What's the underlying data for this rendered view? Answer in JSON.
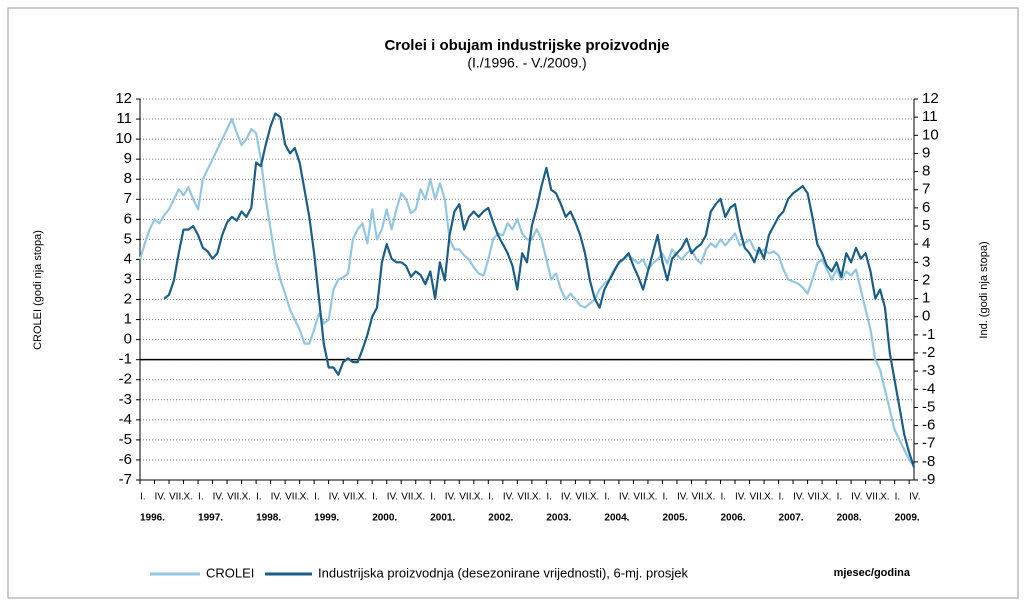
{
  "chart_data": {
    "type": "line",
    "title": "Crolei i obujam industrijske proizvodnje",
    "subtitle": "(I./1996. - V./2009.)",
    "ylabel": "CROLEI (godi nja stopa)",
    "y2label": "Ind. (godi nja stopa)",
    "xlabel": "mjesec/godina",
    "categories": [
      "I.",
      null,
      null,
      "IV.",
      null,
      null,
      "VII.",
      null,
      null,
      "X.",
      null,
      null,
      "I.",
      null,
      null,
      "IV.",
      null,
      null,
      "VII.",
      null,
      null,
      "X.",
      null,
      null,
      "I.",
      null,
      null,
      "IV.",
      null,
      null,
      "VII.",
      null,
      null,
      "X.",
      null,
      null,
      "I.",
      null,
      null,
      "IV.",
      null,
      null,
      "VII.",
      null,
      null,
      "X.",
      null,
      null,
      "I.",
      null,
      null,
      "IV.",
      null,
      null,
      "VII.",
      null,
      null,
      "X.",
      null,
      null,
      "I.",
      null,
      null,
      "IV.",
      null,
      null,
      "VII.",
      null,
      null,
      "X.",
      null,
      null,
      "I.",
      null,
      null,
      "IV.",
      null,
      null,
      "VII.",
      null,
      null,
      "X.",
      null,
      null,
      "I.",
      null,
      null,
      "IV.",
      null,
      null,
      "VII.",
      null,
      null,
      "X.",
      null,
      null,
      "I.",
      null,
      null,
      "IV.",
      null,
      null,
      "VII.",
      null,
      null,
      "X.",
      null,
      null,
      "I.",
      null,
      null,
      "IV.",
      null,
      null,
      "VII.",
      null,
      null,
      "X.",
      null,
      null,
      "I.",
      null,
      null,
      "IV.",
      null,
      null,
      "VII.",
      null,
      null,
      "X.",
      null,
      null,
      "I.",
      null,
      null,
      "IV.",
      null,
      null,
      "VII.",
      null,
      null,
      "X.",
      null,
      null,
      "I.",
      null,
      null,
      "IV.",
      null,
      null,
      "VII.",
      null,
      null,
      "X.",
      null,
      null,
      "I.",
      null,
      null,
      "IV.",
      null
    ],
    "years": [
      "1996.",
      "1997.",
      "1998.",
      "1999.",
      "2000.",
      "2001.",
      "2002.",
      "2003.",
      "2004.",
      "2005.",
      "2006.",
      "2007.",
      "2008.",
      "2009."
    ],
    "series": [
      {
        "name": "CROLEI",
        "color": "#93c6e2",
        "axis": "y",
        "values": [
          4.0,
          4.8,
          5.5,
          6.0,
          5.8,
          6.2,
          6.5,
          7.0,
          7.5,
          7.2,
          7.6,
          7.0,
          6.5,
          8.0,
          8.5,
          9.0,
          9.5,
          10.0,
          10.5,
          11.0,
          10.3,
          9.7,
          10.0,
          10.5,
          10.3,
          9.0,
          7.0,
          5.5,
          4.0,
          3.0,
          2.3,
          1.5,
          1.0,
          0.5,
          -0.2,
          -0.2,
          0.5,
          1.3,
          0.8,
          1.0,
          2.5,
          3.0,
          3.1,
          3.3,
          5.0,
          5.5,
          5.8,
          4.8,
          6.5,
          5.0,
          5.5,
          6.5,
          5.5,
          6.5,
          7.3,
          7.0,
          6.3,
          6.5,
          7.5,
          7.0,
          8.0,
          7.0,
          7.8,
          7.0,
          5.0,
          4.5,
          4.5,
          4.2,
          4.0,
          3.6,
          3.3,
          3.2,
          4.0,
          5.0,
          5.3,
          5.2,
          5.8,
          5.5,
          6.0,
          5.3,
          5.0,
          5.0,
          5.5,
          5.0,
          4.0,
          3.0,
          3.3,
          2.5,
          2.0,
          2.3,
          2.0,
          1.7,
          1.6,
          1.8,
          2.0,
          2.5,
          2.8,
          3.0,
          3.5,
          3.8,
          4.0,
          4.2,
          4.0,
          3.8,
          4.0,
          3.5,
          3.8,
          4.0,
          4.3,
          3.8,
          4.5,
          4.2,
          4.0,
          4.3,
          4.5,
          4.0,
          3.8,
          4.5,
          4.8,
          4.6,
          5.0,
          4.7,
          5.0,
          5.3,
          4.7,
          4.8,
          5.0,
          4.5,
          4.3,
          4.5,
          4.3,
          4.4,
          4.2,
          3.5,
          3.0,
          2.9,
          2.8,
          2.6,
          2.3,
          3.0,
          3.8,
          4.0,
          3.5,
          3.0,
          3.5,
          3.0,
          3.4,
          3.2,
          3.5,
          2.5,
          1.5,
          0.5,
          -1.0,
          -1.5,
          -2.5,
          -3.5,
          -4.5,
          -5.0,
          -5.5,
          -6.0,
          -6.3
        ]
      },
      {
        "name": "Industrijska proizvodnja (desezonirane vrijednosti), 6-mj. prosjek",
        "color": "#1a5e86",
        "axis": "y2",
        "values": [
          null,
          null,
          null,
          null,
          null,
          1.0,
          1.2,
          2.0,
          3.5,
          4.8,
          4.8,
          5.0,
          4.5,
          3.8,
          3.6,
          3.2,
          3.5,
          4.5,
          5.2,
          5.5,
          5.3,
          5.8,
          5.5,
          6.0,
          8.5,
          8.3,
          9.5,
          10.5,
          11.2,
          11.0,
          9.5,
          9.0,
          9.3,
          8.5,
          7.0,
          5.5,
          3.5,
          1.0,
          -1.5,
          -2.8,
          -2.8,
          -3.2,
          -2.5,
          -2.3,
          -2.5,
          -2.5,
          -1.8,
          -1.0,
          0,
          0.5,
          3.0,
          4.0,
          3.2,
          3.0,
          3.0,
          2.8,
          2.2,
          2.5,
          2.3,
          1.8,
          2.5,
          1.0,
          3.0,
          2.0,
          4.5,
          5.8,
          6.2,
          4.8,
          5.5,
          5.8,
          5.5,
          5.8,
          6.0,
          5.2,
          4.5,
          4.0,
          3.5,
          2.8,
          1.5,
          3.5,
          3.0,
          5.0,
          6.0,
          7.2,
          8.2,
          7.0,
          6.8,
          6.2,
          5.5,
          5.8,
          5.2,
          4.5,
          3.5,
          2.0,
          1.0,
          0.5,
          1.5,
          2.0,
          2.5,
          3.0,
          3.2,
          3.5,
          2.8,
          2.2,
          1.5,
          2.5,
          3.5,
          4.5,
          3.0,
          2.0,
          3.2,
          3.5,
          3.8,
          4.3,
          3.5,
          3.8,
          4.0,
          4.5,
          5.8,
          6.2,
          6.5,
          5.5,
          6.0,
          6.2,
          4.8,
          3.8,
          3.5,
          3.0,
          3.8,
          3.2,
          4.5,
          5.0,
          5.5,
          5.8,
          6.5,
          6.8,
          7.0,
          7.2,
          6.8,
          5.5,
          4.0,
          3.5,
          2.8,
          2.5,
          3.0,
          2.2,
          3.5,
          3.0,
          3.8,
          3.2,
          3.5,
          2.5,
          1.0,
          1.5,
          0.5,
          -2.0,
          -3.5,
          -5.0,
          -6.5,
          -7.5,
          -8.3
        ]
      }
    ],
    "ylim": [
      -7,
      12
    ],
    "yticks": [
      -7,
      -6,
      -5,
      -4,
      -3,
      -2,
      -1,
      0,
      1,
      2,
      3,
      4,
      5,
      6,
      7,
      8,
      9,
      10,
      11,
      12
    ],
    "y2lim": [
      -9,
      12
    ],
    "y2ticks": [
      -9,
      -8,
      -7,
      -6,
      -5,
      -4,
      -3,
      -2,
      -1,
      0,
      1,
      2,
      3,
      4,
      5,
      6,
      7,
      8,
      9,
      10,
      11,
      12
    ],
    "reference_line": -1,
    "grid": true
  }
}
